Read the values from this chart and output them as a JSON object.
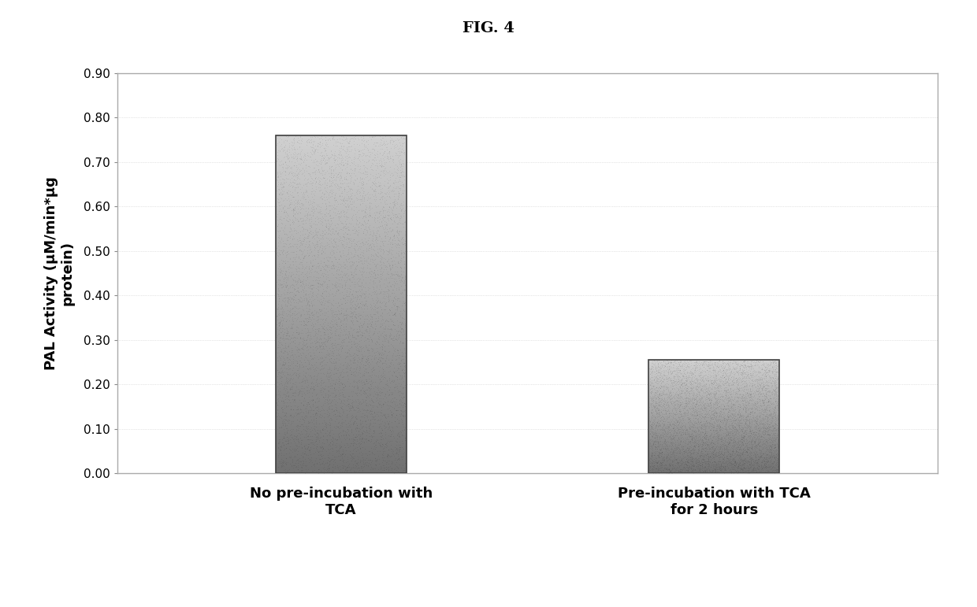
{
  "title": "FIG. 4",
  "categories": [
    "No pre-incubation with\nTCA",
    "Pre-incubation with TCA\nfor 2 hours"
  ],
  "values": [
    0.76,
    0.255
  ],
  "bar_color_top": "#c8c8c8",
  "bar_color_bottom": "#707070",
  "bar_edge_color": "#404040",
  "ylabel": "PAL Activity (μM/min*μg\nprotein)",
  "ylim": [
    0.0,
    0.9
  ],
  "yticks": [
    0.0,
    0.1,
    0.2,
    0.3,
    0.4,
    0.5,
    0.6,
    0.7,
    0.8,
    0.9
  ],
  "ytick_labels": [
    "0.00",
    "0.10",
    "0.20",
    "0.30",
    "0.40",
    "0.50",
    "0.60",
    "0.70",
    "0.80",
    "0.90"
  ],
  "background_color": "#ffffff",
  "border_color": "#aaaaaa",
  "title_fontsize": 14,
  "label_fontsize": 13,
  "tick_fontsize": 11,
  "category_fontsize": 13,
  "bar_width": 0.35,
  "x_positions": [
    1,
    2
  ],
  "xlim": [
    0.4,
    2.6
  ]
}
